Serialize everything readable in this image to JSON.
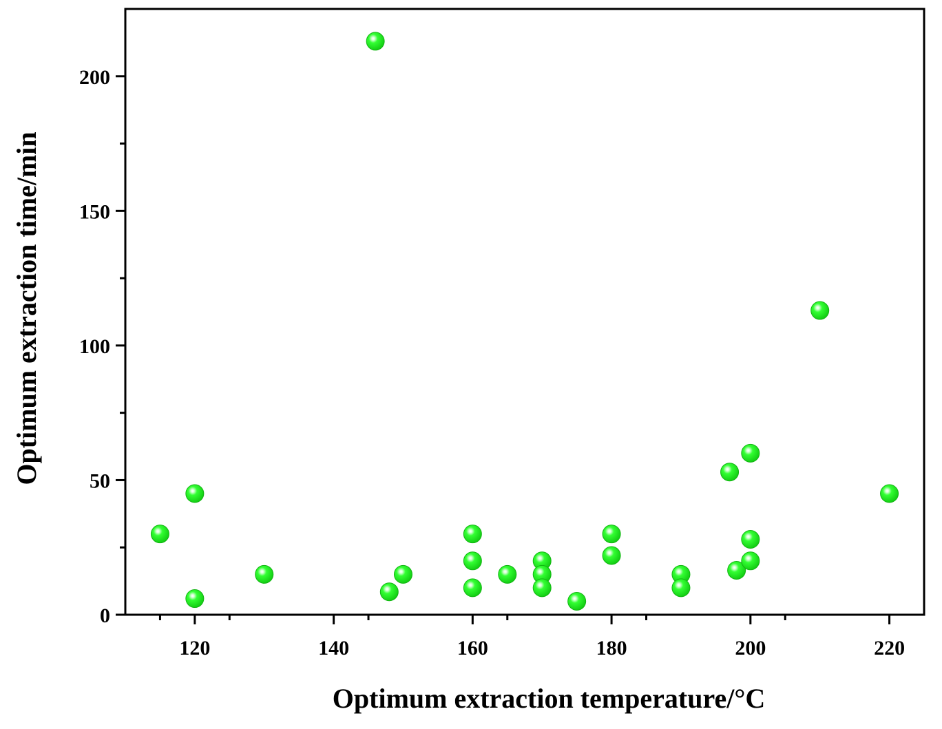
{
  "chart_data": {
    "type": "scatter",
    "title": "",
    "xlabel": "Optimum extraction temperature/°C",
    "ylabel": "Optimum extraction time/min",
    "xlim": [
      110,
      225
    ],
    "ylim": [
      0,
      225
    ],
    "x_ticks": [
      120,
      140,
      160,
      180,
      200,
      220
    ],
    "y_ticks": [
      0,
      50,
      100,
      150,
      200
    ],
    "grid": false,
    "marker_color": "#22ee22",
    "points": [
      {
        "x": 115,
        "y": 30
      },
      {
        "x": 120,
        "y": 45
      },
      {
        "x": 120,
        "y": 6
      },
      {
        "x": 130,
        "y": 15
      },
      {
        "x": 146,
        "y": 213
      },
      {
        "x": 148,
        "y": 8.5
      },
      {
        "x": 150,
        "y": 15
      },
      {
        "x": 160,
        "y": 30
      },
      {
        "x": 160,
        "y": 20
      },
      {
        "x": 160,
        "y": 10
      },
      {
        "x": 165,
        "y": 15
      },
      {
        "x": 170,
        "y": 20
      },
      {
        "x": 170,
        "y": 15
      },
      {
        "x": 170,
        "y": 10
      },
      {
        "x": 175,
        "y": 5
      },
      {
        "x": 180,
        "y": 30
      },
      {
        "x": 180,
        "y": 22
      },
      {
        "x": 190,
        "y": 15
      },
      {
        "x": 190,
        "y": 10
      },
      {
        "x": 197,
        "y": 53
      },
      {
        "x": 198,
        "y": 16.5
      },
      {
        "x": 200,
        "y": 60
      },
      {
        "x": 200,
        "y": 28
      },
      {
        "x": 200,
        "y": 20
      },
      {
        "x": 210,
        "y": 113
      },
      {
        "x": 220,
        "y": 45
      }
    ]
  }
}
